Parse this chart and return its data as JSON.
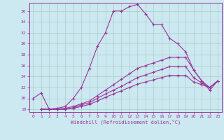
{
  "xlabel": "Windchill (Refroidissement éolien,°C)",
  "bg_color": "#cce8f0",
  "line_color": "#993399",
  "grid_color": "#aacccc",
  "xlim": [
    -0.5,
    23.5
  ],
  "ylim": [
    17.5,
    37.5
  ],
  "yticks": [
    18,
    20,
    22,
    24,
    26,
    28,
    30,
    32,
    34,
    36
  ],
  "xticks": [
    0,
    1,
    2,
    3,
    4,
    5,
    6,
    7,
    8,
    9,
    10,
    11,
    12,
    13,
    14,
    15,
    16,
    17,
    18,
    19,
    20,
    21,
    22,
    23
  ],
  "curves": [
    {
      "x": [
        0,
        1,
        2,
        3,
        4,
        5,
        6,
        7,
        8,
        9,
        10,
        11,
        12,
        13,
        14,
        15,
        16,
        17,
        18,
        19,
        20,
        21,
        22,
        23
      ],
      "y": [
        20,
        21,
        18,
        18.2,
        18.5,
        20,
        22,
        25.5,
        29.5,
        32,
        36,
        36,
        36.8,
        37.2,
        35.5,
        33.5,
        33.5,
        31,
        30,
        28.5,
        25.2,
        23.2,
        21.5,
        23.2
      ]
    },
    {
      "x": [
        1,
        2,
        3,
        4,
        5,
        6,
        7,
        8,
        9,
        10,
        11,
        12,
        13,
        14,
        15,
        16,
        17,
        18,
        19,
        20,
        21,
        22,
        23
      ],
      "y": [
        18,
        18,
        18,
        18.2,
        18.5,
        19.0,
        19.5,
        20.5,
        21.5,
        22.5,
        23.5,
        24.5,
        25.5,
        26,
        26.5,
        27,
        27.5,
        27.5,
        27.5,
        25.2,
        23.2,
        22,
        23.2
      ]
    },
    {
      "x": [
        1,
        2,
        3,
        4,
        5,
        6,
        7,
        8,
        9,
        10,
        11,
        12,
        13,
        14,
        15,
        16,
        17,
        18,
        19,
        20,
        21,
        22,
        23
      ],
      "y": [
        18,
        18,
        18,
        18,
        18.3,
        18.8,
        19.2,
        20.0,
        20.8,
        21.5,
        22.2,
        23.0,
        23.8,
        24.3,
        24.8,
        25.3,
        25.8,
        25.8,
        25.8,
        23.8,
        22.8,
        22,
        23.2
      ]
    },
    {
      "x": [
        1,
        2,
        3,
        4,
        5,
        6,
        7,
        8,
        9,
        10,
        11,
        12,
        13,
        14,
        15,
        16,
        17,
        18,
        19,
        20,
        21,
        22,
        23
      ],
      "y": [
        18,
        18,
        18,
        18,
        18.2,
        18.5,
        18.9,
        19.5,
        20.2,
        20.8,
        21.4,
        22.0,
        22.6,
        23.0,
        23.4,
        23.8,
        24.2,
        24.2,
        24.2,
        23.0,
        22.5,
        22,
        23.2
      ]
    }
  ]
}
